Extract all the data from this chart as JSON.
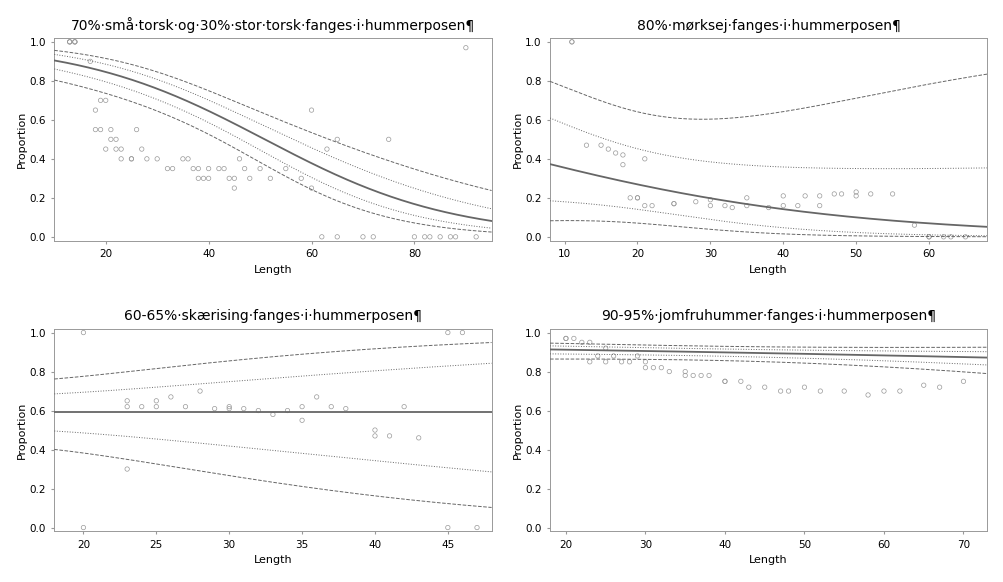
{
  "title_fontsize": 10,
  "axis_label_fontsize": 8,
  "tick_fontsize": 7.5,
  "plots": [
    {
      "title": "70%·små·torsk·og·30%·stor·torsk·fanges·i·hummerposen¶",
      "xlim": [
        10,
        95
      ],
      "ylim": [
        -0.02,
        1.02
      ],
      "xticks": [
        20,
        40,
        60,
        80
      ],
      "yticks": [
        0.0,
        0.2,
        0.4,
        0.6,
        0.8,
        1.0
      ],
      "xlabel": "Length",
      "ylabel": "Proportion",
      "scatter_x": [
        13,
        13,
        13,
        14,
        14,
        14,
        17,
        18,
        18,
        19,
        19,
        20,
        20,
        21,
        21,
        22,
        22,
        23,
        23,
        25,
        25,
        26,
        27,
        28,
        30,
        32,
        33,
        35,
        36,
        37,
        38,
        38,
        39,
        40,
        40,
        42,
        43,
        44,
        45,
        45,
        46,
        47,
        48,
        50,
        52,
        55,
        58,
        60,
        60,
        62,
        63,
        65,
        65,
        70,
        72,
        75,
        80,
        82,
        83,
        85,
        87,
        88,
        90,
        92
      ],
      "scatter_y": [
        1,
        1,
        1,
        1,
        1,
        1,
        0.9,
        0.65,
        0.55,
        0.7,
        0.55,
        0.45,
        0.7,
        0.5,
        0.55,
        0.45,
        0.5,
        0.45,
        0.4,
        0.4,
        0.4,
        0.55,
        0.45,
        0.4,
        0.4,
        0.35,
        0.35,
        0.4,
        0.4,
        0.35,
        0.35,
        0.3,
        0.3,
        0.3,
        0.35,
        0.35,
        0.35,
        0.3,
        0.25,
        0.3,
        0.4,
        0.35,
        0.3,
        0.35,
        0.3,
        0.35,
        0.3,
        0.65,
        0.25,
        0.0,
        0.45,
        0.5,
        0.0,
        0.0,
        0.0,
        0.5,
        0.0,
        0.0,
        0.0,
        0.0,
        0.0,
        0.0,
        0.97,
        0.0
      ],
      "b0": 2.8,
      "b1": -0.055,
      "se_b0": 0.52,
      "se_b1": 0.011,
      "cov_b0b1": -0.005,
      "outer_mult": 1.96,
      "inner_mult": 1.0
    },
    {
      "title": "80%·mørksej·fanges·i·hummerposen¶",
      "xlim": [
        8,
        68
      ],
      "ylim": [
        -0.02,
        1.02
      ],
      "xticks": [
        10,
        20,
        30,
        40,
        50,
        60
      ],
      "yticks": [
        0.0,
        0.2,
        0.4,
        0.6,
        0.8,
        1.0
      ],
      "xlabel": "Length",
      "ylabel": "Proportion",
      "scatter_x": [
        11,
        11,
        13,
        15,
        16,
        17,
        18,
        18,
        19,
        20,
        20,
        21,
        21,
        22,
        25,
        25,
        28,
        30,
        30,
        32,
        33,
        35,
        35,
        38,
        40,
        40,
        42,
        43,
        45,
        45,
        47,
        48,
        50,
        50,
        52,
        55,
        58,
        60,
        60,
        62,
        63,
        65
      ],
      "scatter_y": [
        1,
        1,
        0.47,
        0.47,
        0.45,
        0.43,
        0.42,
        0.37,
        0.2,
        0.2,
        0.2,
        0.4,
        0.16,
        0.16,
        0.17,
        0.17,
        0.18,
        0.19,
        0.16,
        0.16,
        0.15,
        0.16,
        0.2,
        0.15,
        0.21,
        0.16,
        0.16,
        0.21,
        0.16,
        0.21,
        0.22,
        0.22,
        0.23,
        0.21,
        0.22,
        0.22,
        0.06,
        0.0,
        0.0,
        0.0,
        0.0,
        0.0
      ],
      "b0": -0.2,
      "b1": -0.04,
      "se_b0": 1.2,
      "se_b1": 0.045,
      "cov_b0b1": -0.04,
      "outer_mult": 1.96,
      "inner_mult": 1.0
    },
    {
      "title": "60-65%·skærising·fanges·i·hummerposen¶",
      "xlim": [
        18,
        48
      ],
      "ylim": [
        -0.02,
        1.02
      ],
      "xticks": [
        20,
        25,
        30,
        35,
        40,
        45
      ],
      "yticks": [
        0.0,
        0.2,
        0.4,
        0.6,
        0.8,
        1.0
      ],
      "xlabel": "Length",
      "ylabel": "Proportion",
      "scatter_x": [
        20,
        20,
        23,
        23,
        23,
        24,
        25,
        25,
        26,
        27,
        28,
        29,
        30,
        30,
        31,
        32,
        33,
        34,
        35,
        35,
        36,
        37,
        38,
        40,
        40,
        41,
        42,
        43,
        45,
        45,
        46,
        47
      ],
      "scatter_y": [
        0.0,
        1.0,
        0.65,
        0.62,
        0.3,
        0.62,
        0.65,
        0.62,
        0.67,
        0.62,
        0.7,
        0.61,
        0.62,
        0.61,
        0.61,
        0.6,
        0.58,
        0.6,
        0.55,
        0.62,
        0.67,
        0.62,
        0.61,
        0.47,
        0.5,
        0.47,
        0.62,
        0.46,
        0.0,
        1.0,
        1.0,
        0.0
      ],
      "b0": 0.38,
      "b1": 0.0,
      "se_b0": 0.55,
      "se_b1": 0.035,
      "cov_b0b1": -0.015,
      "outer_mult": 1.96,
      "inner_mult": 1.0
    },
    {
      "title": "90-95%·jomfruhummer·fanges·i·hummerposen¶",
      "xlim": [
        18,
        73
      ],
      "ylim": [
        -0.02,
        1.02
      ],
      "xticks": [
        20,
        30,
        40,
        50,
        60,
        70
      ],
      "yticks": [
        0.0,
        0.2,
        0.4,
        0.6,
        0.8,
        1.0
      ],
      "xlabel": "Length",
      "ylabel": "Proportion",
      "scatter_x": [
        20,
        20,
        21,
        22,
        23,
        23,
        24,
        25,
        25,
        26,
        27,
        28,
        29,
        30,
        30,
        31,
        32,
        33,
        35,
        35,
        36,
        37,
        38,
        40,
        40,
        42,
        43,
        45,
        47,
        48,
        50,
        52,
        55,
        58,
        60,
        62,
        65,
        67,
        70
      ],
      "scatter_y": [
        0.97,
        0.97,
        0.97,
        0.95,
        0.95,
        0.85,
        0.88,
        0.92,
        0.85,
        0.88,
        0.85,
        0.85,
        0.88,
        0.85,
        0.82,
        0.82,
        0.82,
        0.8,
        0.78,
        0.8,
        0.78,
        0.78,
        0.78,
        0.75,
        0.75,
        0.75,
        0.72,
        0.72,
        0.7,
        0.7,
        0.72,
        0.7,
        0.7,
        0.68,
        0.7,
        0.7,
        0.73,
        0.72,
        0.75
      ],
      "b0": 2.5,
      "b1": -0.008,
      "se_b0": 0.35,
      "se_b1": 0.007,
      "cov_b0b1": -0.002,
      "outer_mult": 1.96,
      "inner_mult": 1.0
    }
  ],
  "line_color": "#666666",
  "scatter_color": "#999999",
  "bg_color": "#ffffff",
  "spine_color": "#999999"
}
